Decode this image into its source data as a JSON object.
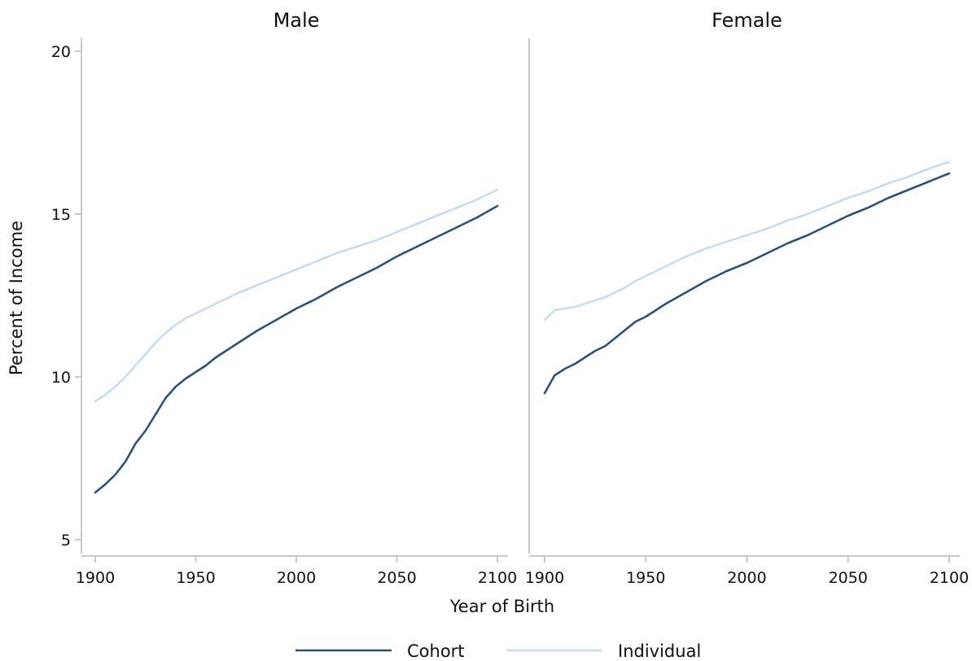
{
  "chart_data": {
    "type": "line",
    "xlabel": "Year of Birth",
    "ylabel": "Percent of Income",
    "xlim": [
      1900,
      2100
    ],
    "ylim": [
      5,
      20
    ],
    "xticks": [
      1900,
      1950,
      2000,
      2050,
      2100
    ],
    "yticks": [
      5,
      10,
      15,
      20
    ],
    "grid": false,
    "legend_position": "bottom",
    "colors": {
      "Cohort": "#2b5275",
      "Individual": "#c6dcef"
    },
    "series_names": [
      "Cohort",
      "Individual"
    ],
    "panels": [
      {
        "title": "Male",
        "series": [
          {
            "name": "Cohort",
            "x": [
              1900,
              1905,
              1910,
              1915,
              1920,
              1925,
              1930,
              1935,
              1940,
              1945,
              1950,
              1955,
              1960,
              1970,
              1980,
              1990,
              2000,
              2010,
              2020,
              2030,
              2040,
              2050,
              2060,
              2070,
              2080,
              2090,
              2100
            ],
            "y": [
              6.45,
              6.7,
              7.0,
              7.4,
              7.95,
              8.35,
              8.85,
              9.35,
              9.7,
              9.95,
              10.15,
              10.35,
              10.6,
              11.0,
              11.4,
              11.75,
              12.1,
              12.4,
              12.75,
              13.05,
              13.35,
              13.7,
              14.0,
              14.3,
              14.6,
              14.9,
              15.25
            ]
          },
          {
            "name": "Individual",
            "x": [
              1900,
              1905,
              1910,
              1915,
              1920,
              1925,
              1930,
              1935,
              1940,
              1945,
              1950,
              1955,
              1960,
              1970,
              1980,
              1990,
              2000,
              2010,
              2020,
              2030,
              2040,
              2050,
              2060,
              2070,
              2080,
              2090,
              2100
            ],
            "y": [
              9.25,
              9.45,
              9.7,
              10.0,
              10.35,
              10.7,
              11.05,
              11.35,
              11.6,
              11.8,
              11.95,
              12.1,
              12.25,
              12.55,
              12.8,
              13.05,
              13.3,
              13.55,
              13.8,
              14.0,
              14.2,
              14.45,
              14.7,
              14.95,
              15.2,
              15.45,
              15.75
            ]
          }
        ]
      },
      {
        "title": "Female",
        "series": [
          {
            "name": "Cohort",
            "x": [
              1900,
              1905,
              1910,
              1915,
              1920,
              1925,
              1930,
              1935,
              1940,
              1945,
              1950,
              1955,
              1960,
              1970,
              1980,
              1990,
              2000,
              2010,
              2020,
              2030,
              2040,
              2050,
              2060,
              2070,
              2080,
              2090,
              2100
            ],
            "y": [
              9.5,
              10.05,
              10.25,
              10.4,
              10.6,
              10.8,
              10.95,
              11.2,
              11.45,
              11.7,
              11.85,
              12.05,
              12.25,
              12.6,
              12.95,
              13.25,
              13.5,
              13.8,
              14.1,
              14.35,
              14.65,
              14.95,
              15.2,
              15.5,
              15.75,
              16.0,
              16.25
            ]
          },
          {
            "name": "Individual",
            "x": [
              1900,
              1905,
              1910,
              1915,
              1920,
              1925,
              1930,
              1935,
              1940,
              1945,
              1950,
              1955,
              1960,
              1970,
              1980,
              1990,
              2000,
              2010,
              2020,
              2030,
              2040,
              2050,
              2060,
              2070,
              2080,
              2090,
              2100
            ],
            "y": [
              11.75,
              12.05,
              12.1,
              12.15,
              12.25,
              12.35,
              12.45,
              12.6,
              12.75,
              12.95,
              13.1,
              13.25,
              13.4,
              13.7,
              13.95,
              14.15,
              14.35,
              14.55,
              14.8,
              15.0,
              15.25,
              15.5,
              15.7,
              15.95,
              16.15,
              16.4,
              16.6
            ]
          }
        ]
      }
    ]
  }
}
